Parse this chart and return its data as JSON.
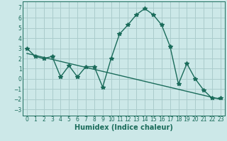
{
  "xlabel": "Humidex (Indice chaleur)",
  "background_color": "#cce8e8",
  "grid_color": "#aacccc",
  "line_color": "#1a6b5a",
  "x_ticks": [
    0,
    1,
    2,
    3,
    4,
    5,
    6,
    7,
    8,
    9,
    10,
    11,
    12,
    13,
    14,
    15,
    16,
    17,
    18,
    19,
    20,
    21,
    22,
    23
  ],
  "y_ticks": [
    -3,
    -2,
    -1,
    0,
    1,
    2,
    3,
    4,
    5,
    6,
    7
  ],
  "ylim": [
    -3.6,
    7.6
  ],
  "xlim": [
    -0.5,
    23.5
  ],
  "series1_x": [
    0,
    1,
    2,
    3,
    4,
    5,
    6,
    7,
    8,
    9,
    10,
    11,
    12,
    13,
    14,
    15,
    16,
    17,
    18,
    19,
    20,
    21,
    22,
    23
  ],
  "series1_y": [
    3.0,
    2.2,
    2.0,
    2.2,
    0.2,
    1.3,
    0.2,
    1.2,
    1.2,
    -0.8,
    2.0,
    4.4,
    5.3,
    6.3,
    6.9,
    6.3,
    5.3,
    3.2,
    -0.5,
    1.5,
    0.0,
    -1.1,
    -1.9,
    -1.9
  ],
  "series2_x": [
    0,
    23
  ],
  "series2_y": [
    2.5,
    -2.0
  ],
  "marker": "*",
  "markersize": 4,
  "linewidth": 1.0,
  "tick_fontsize": 5.5,
  "xlabel_fontsize": 7
}
